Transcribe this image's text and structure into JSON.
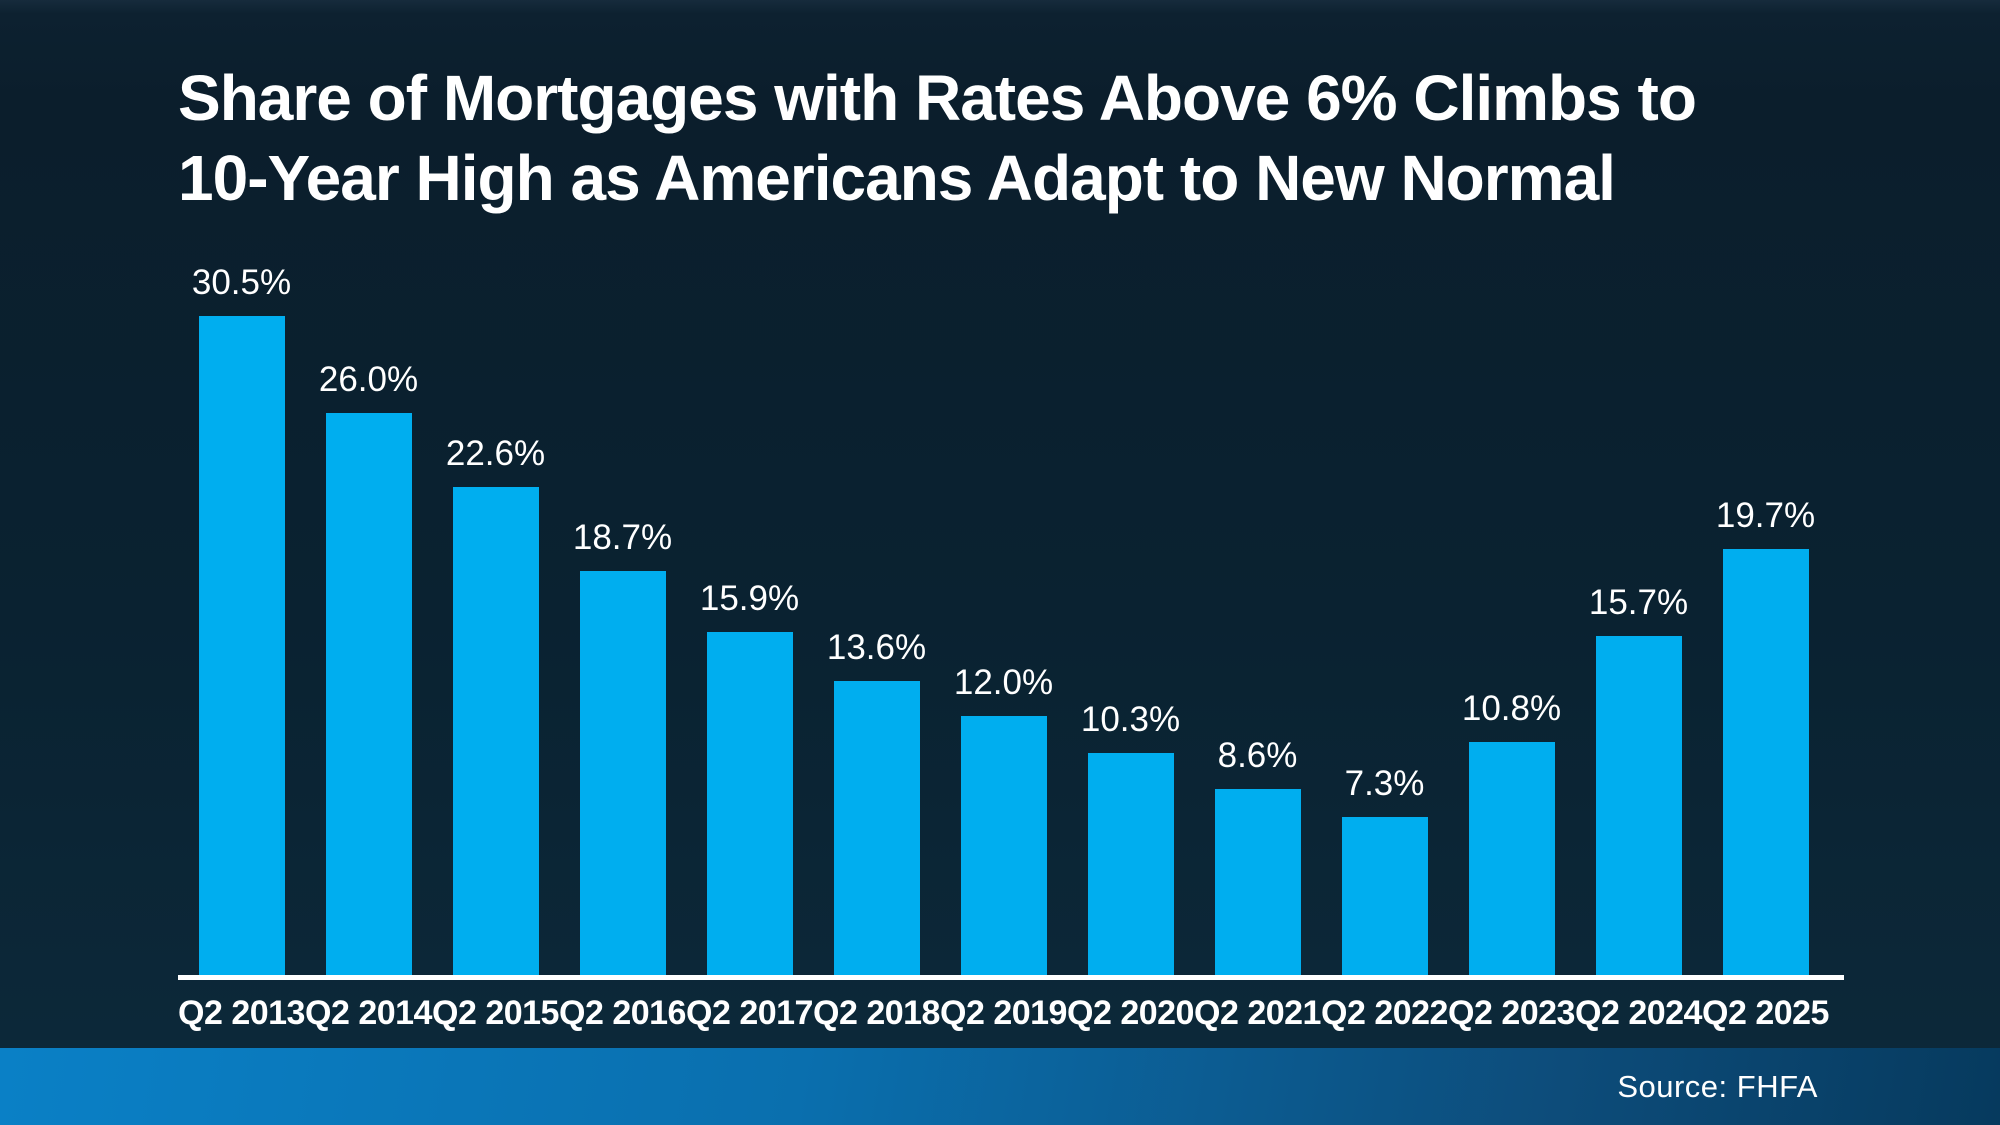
{
  "title": {
    "line1": "Share of Mortgages with Rates Above 6% Climbs to",
    "line2": "10-Year High as Americans Adapt to New Normal"
  },
  "source": {
    "label": "Source: FHFA"
  },
  "colors": {
    "bar": "#00aeef",
    "background_top": "#0b1e2c",
    "background_bottom": "#0c2939",
    "axis_line": "#ffffff",
    "footer_gradient_left": "#0a80c6",
    "footer_gradient_right": "#063a5e",
    "text": "#ffffff"
  },
  "chart_data": {
    "type": "bar",
    "title": "Share of Mortgages with Rates Above 6% Climbs to 10-Year High as Americans Adapt to New Normal",
    "categories": [
      "Q2 2013",
      "Q2 2014",
      "Q2 2015",
      "Q2 2016",
      "Q2 2017",
      "Q2 2018",
      "Q2 2019",
      "Q2 2020",
      "Q2 2021",
      "Q2 2022",
      "Q2 2023",
      "Q2 2024",
      "Q2 2025"
    ],
    "values": [
      30.5,
      26.0,
      22.6,
      18.7,
      15.9,
      13.6,
      12.0,
      10.3,
      8.6,
      7.3,
      10.8,
      15.7,
      19.7
    ],
    "value_labels": [
      "30.5%",
      "26.0%",
      "22.6%",
      "18.7%",
      "15.9%",
      "13.6%",
      "12.0%",
      "10.3%",
      "8.6%",
      "7.3%",
      "10.8%",
      "15.7%",
      "19.7%"
    ],
    "xlabel": "",
    "ylabel": "",
    "ylim": [
      0,
      32
    ],
    "grid": false,
    "legend": "none",
    "unit": "%"
  }
}
